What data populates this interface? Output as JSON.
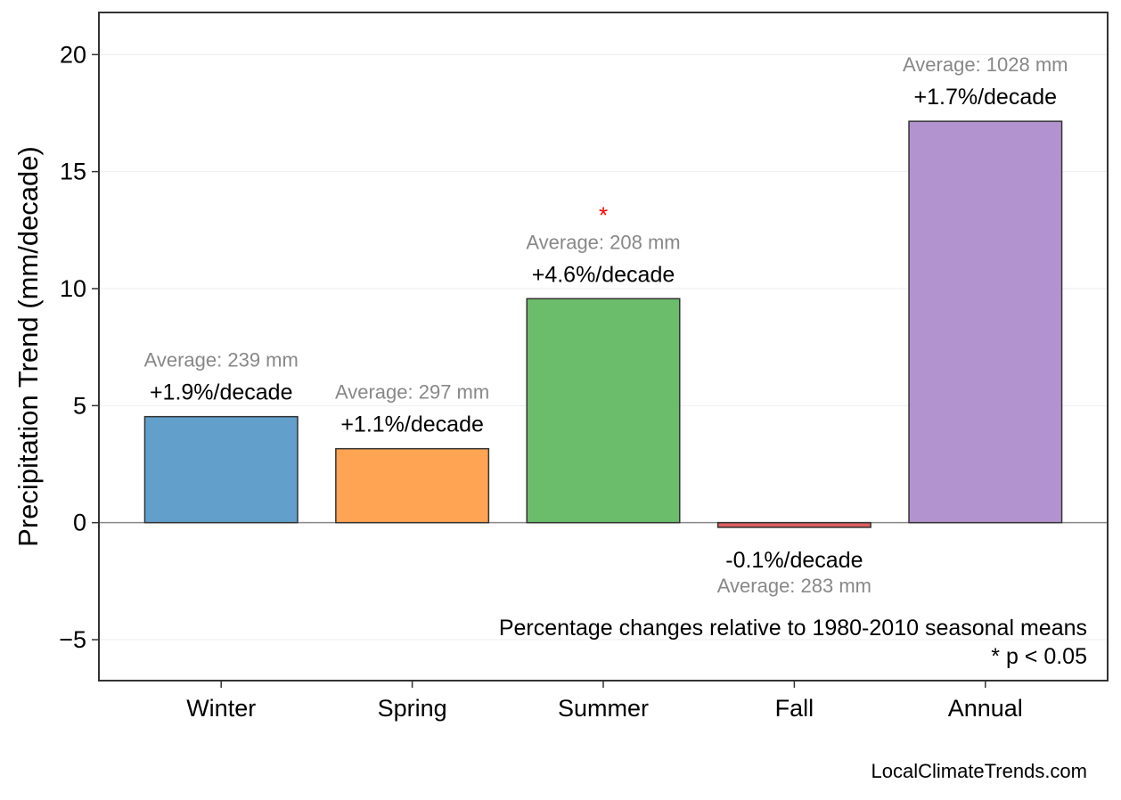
{
  "chart_data": {
    "type": "bar",
    "title": "",
    "xlabel": "",
    "ylabel": "Precipitation Trend (mm/decade)",
    "ylim": [
      -6.75,
      21.8
    ],
    "yticks": [
      -5,
      0,
      5,
      10,
      15,
      20
    ],
    "ytick_labels": [
      "−5",
      "0",
      "5",
      "10",
      "15",
      "20"
    ],
    "grid": "horizontal, faint",
    "categories": [
      "Winter",
      "Spring",
      "Summer",
      "Fall",
      "Annual"
    ],
    "values": [
      4.53,
      3.16,
      9.57,
      -0.2,
      17.15
    ],
    "colors": [
      "#62a0cb",
      "#fea453",
      "#6bbd6b",
      "#de5f5f",
      "#b293cf"
    ],
    "pct_labels": [
      "+1.9%/decade",
      "+1.1%/decade",
      "+4.6%/decade",
      "-0.1%/decade",
      "+1.7%/decade"
    ],
    "avg_labels": [
      "Average: 239 mm",
      "Average: 297 mm",
      "Average: 208 mm",
      "Average: 283 mm",
      "Average: 1028 mm"
    ],
    "significant": [
      false,
      false,
      true,
      false,
      false
    ],
    "significance_marker": "*",
    "significance_color": "#ff0000",
    "annotation_lines": [
      "Percentage changes relative to 1980-2010 seasonal means",
      "* p < 0.05"
    ],
    "credit": "LocalClimateTrends.com"
  }
}
